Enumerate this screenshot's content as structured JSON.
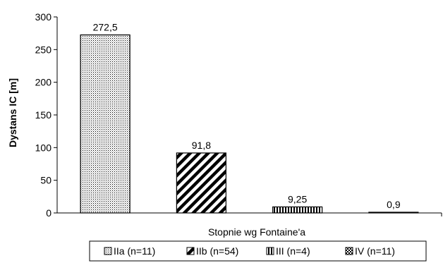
{
  "chart_data": {
    "type": "bar",
    "categories": [
      "IIa (n=11)",
      "IIb (n=54)",
      "III (n=4)",
      "IV (n=11)"
    ],
    "values": [
      272.5,
      91.8,
      9.25,
      0.9
    ],
    "data_labels": [
      "272,5",
      "91,8",
      "9,25",
      "0,9"
    ],
    "title": "",
    "xlabel": "Stopnie wg Fontaine'a",
    "ylabel": "Dystans IC [m]",
    "ylim": [
      0,
      300
    ],
    "yticks": [
      0,
      50,
      100,
      150,
      200,
      250,
      300
    ],
    "grid": false,
    "legend_position": "bottom",
    "fills": [
      "dots",
      "diagonal-stripes",
      "vertical-stripes",
      "checker"
    ]
  }
}
